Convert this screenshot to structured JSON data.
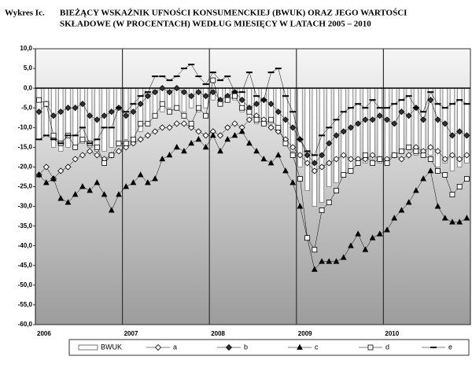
{
  "chart_data": {
    "type": "line",
    "label": "Wykres Ic.",
    "title": [
      "BIEŻĄCY WSKAŹNIK UFNOŚCI KONSUMENCKIEJ (BWUK) ORAZ JEGO WARTOŚCI",
      "SKŁADOWE (W PROCENTACH) WEDŁUG MIESIĘCY W LATACH 2005 – 2010"
    ],
    "categories": [
      "2006",
      null,
      null,
      null,
      null,
      null,
      null,
      null,
      null,
      null,
      null,
      null,
      "2007",
      null,
      null,
      null,
      null,
      null,
      null,
      null,
      null,
      null,
      null,
      null,
      "2008",
      null,
      null,
      null,
      null,
      null,
      null,
      null,
      null,
      null,
      null,
      null,
      "2009",
      null,
      null,
      null,
      null,
      null,
      null,
      null,
      null,
      null,
      null,
      null,
      "2010",
      null,
      null,
      null,
      null,
      null,
      null,
      null,
      null,
      null,
      null,
      null
    ],
    "ylim": [
      -60,
      10
    ],
    "yticks": [
      {
        "value": 10,
        "label": "10,0"
      },
      {
        "value": 5,
        "label": "5,0"
      },
      {
        "value": 0,
        "label": "0,0"
      },
      {
        "value": -5,
        "label": "-5,0"
      },
      {
        "value": -10,
        "label": "-10,0"
      },
      {
        "value": -15,
        "label": "-15,0"
      },
      {
        "value": -20,
        "label": "-20,0"
      },
      {
        "value": -25,
        "label": "-25,0"
      },
      {
        "value": -30,
        "label": "-30,0"
      },
      {
        "value": -35,
        "label": "-35,0"
      },
      {
        "value": -40,
        "label": "-40,0"
      },
      {
        "value": -45,
        "label": "-45,0"
      },
      {
        "value": -50,
        "label": "-50,0"
      },
      {
        "value": -55,
        "label": "-55,0"
      },
      {
        "value": -60,
        "label": "-60,0"
      }
    ],
    "series": [
      {
        "name": "BWUK",
        "marker": "bar",
        "color": "#ffffff",
        "values": [
          -13,
          -12,
          -15,
          -16,
          -15,
          -15,
          -14,
          -15,
          -16,
          -16,
          -15,
          -14,
          -13,
          -13,
          -11,
          -9,
          -7,
          -6,
          -5,
          -5,
          -6,
          -5,
          -6,
          -5,
          -3,
          -4,
          -2,
          -3,
          -6,
          -8,
          -9,
          -8,
          -9,
          -10,
          -13,
          -16,
          -20,
          -26,
          -30,
          -29,
          -25,
          -24,
          -22,
          -21,
          -19,
          -19,
          -18,
          -19,
          -18,
          -17,
          -16,
          -15,
          -17,
          -16,
          -17,
          -20,
          -19,
          -21,
          -20,
          -19
        ]
      },
      {
        "name": "a",
        "marker": "diamond-open",
        "color": "#000000",
        "values": [
          -22,
          -20,
          -23,
          -21,
          -20,
          -18,
          -17,
          -16,
          -17,
          -18,
          -17,
          -16,
          -15,
          -14,
          -13,
          -12,
          -11,
          -10,
          -10,
          -9,
          -9,
          -10,
          -11,
          -12,
          -11,
          -12,
          -10,
          -9,
          -10,
          -8,
          -7,
          -8,
          -10,
          -11,
          -13,
          -15,
          -17,
          -19,
          -21,
          -20,
          -19,
          -18,
          -17,
          -18,
          -18,
          -18,
          -17,
          -18,
          -18,
          -17,
          -18,
          -17,
          -15,
          -16,
          -15,
          -16,
          -18,
          -17,
          -18,
          -17
        ]
      },
      {
        "name": "b",
        "marker": "diamond",
        "color": "#000000",
        "values": [
          -6,
          -4,
          -7,
          -6,
          -5,
          -5,
          -4,
          -7,
          -8,
          -7,
          -6,
          -5,
          -7,
          -6,
          -4,
          -2,
          -1,
          0,
          -1,
          0,
          -1,
          -2,
          -1,
          -2,
          -1,
          -3,
          -2,
          -1,
          -3,
          -5,
          -4,
          -3,
          -4,
          -6,
          -8,
          -10,
          -13,
          -17,
          -19,
          -17,
          -14,
          -12,
          -11,
          -10,
          -9,
          -8,
          -8,
          -7,
          -8,
          -9,
          -6,
          -7,
          -5,
          -8,
          -3,
          -8,
          -9,
          -12,
          -11,
          -12
        ]
      },
      {
        "name": "c",
        "marker": "triangle",
        "color": "#000000",
        "values": [
          -22,
          -24,
          -23,
          -28,
          -29,
          -27,
          -25,
          -26,
          -24,
          -27,
          -31,
          -27,
          -25,
          -24,
          -22,
          -24,
          -23,
          -18,
          -17,
          -15,
          -16,
          -14,
          -13,
          -15,
          -12,
          -16,
          -13,
          -12,
          -11,
          -14,
          -16,
          -18,
          -19,
          -17,
          -21,
          -24,
          -30,
          -38,
          -46,
          -44,
          -44,
          -44,
          -43,
          -40,
          -37,
          -41,
          -38,
          -37,
          -36,
          -33,
          -31,
          -29,
          -26,
          -23,
          -21,
          -30,
          -33,
          -34,
          -34,
          -33
        ]
      },
      {
        "name": "d",
        "marker": "square-open",
        "color": "#000000",
        "values": [
          -3,
          -4,
          -12,
          -14,
          -12,
          -15,
          -13,
          -14,
          -15,
          -19,
          -17,
          -14,
          -14,
          -13,
          -9,
          -9,
          -7,
          -4,
          -6,
          -5,
          -7,
          -9,
          -5,
          -7,
          2,
          -4,
          -3,
          -2,
          -5,
          -6,
          -8,
          -9,
          -8,
          -10,
          -14,
          -17,
          -23,
          -38,
          -41,
          -31,
          -29,
          -26,
          -22,
          -21,
          -19,
          -17,
          -19,
          -18,
          -19,
          -17,
          -16,
          -15,
          -16,
          -17,
          -18,
          -21,
          -22,
          -27,
          -25,
          -23
        ]
      },
      {
        "name": "e",
        "marker": "dash",
        "color": "#000000",
        "values": [
          -13,
          -12,
          -13,
          -14,
          -12,
          -12,
          -10,
          -14,
          -13,
          -10,
          -10,
          -5,
          -6,
          -4,
          -2,
          -1,
          3,
          3,
          2,
          3,
          5,
          6,
          3,
          1,
          4,
          2,
          3,
          -1,
          -1,
          4,
          -2,
          -3,
          4,
          5,
          -2,
          -6,
          -13,
          -16,
          -17,
          -12,
          -10,
          -8,
          -6,
          -5,
          -4,
          -5,
          -3,
          -5,
          -5,
          -4,
          -3,
          -2,
          -5,
          -6,
          -1,
          -4,
          -5,
          -4,
          -3,
          -4
        ]
      }
    ]
  }
}
